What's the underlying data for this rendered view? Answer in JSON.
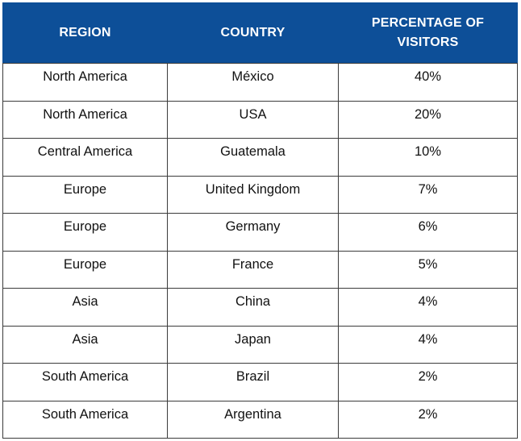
{
  "table": {
    "headers": {
      "region": "REGION",
      "country": "COUNTRY",
      "percentage": "PERCENTAGE OF VISITORS"
    },
    "rows": [
      {
        "region": "North America",
        "country": "México",
        "percentage": "40%"
      },
      {
        "region": "North America",
        "country": "USA",
        "percentage": "20%"
      },
      {
        "region": "Central America",
        "country": "Guatemala",
        "percentage": "10%"
      },
      {
        "region": "Europe",
        "country": "United Kingdom",
        "percentage": "7%"
      },
      {
        "region": "Europe",
        "country": "Germany",
        "percentage": "6%"
      },
      {
        "region": "Europe",
        "country": "France",
        "percentage": "5%"
      },
      {
        "region": "Asia",
        "country": "China",
        "percentage": "4%"
      },
      {
        "region": "Asia",
        "country": "Japan",
        "percentage": "4%"
      },
      {
        "region": "South America",
        "country": "Brazil",
        "percentage": "2%"
      },
      {
        "region": "South America",
        "country": "Argentina",
        "percentage": "2%"
      }
    ]
  },
  "colors": {
    "header_background": "#0d4f98",
    "header_text": "#ffffff",
    "border": "#3b3b3b",
    "cell_text": "#111111"
  }
}
